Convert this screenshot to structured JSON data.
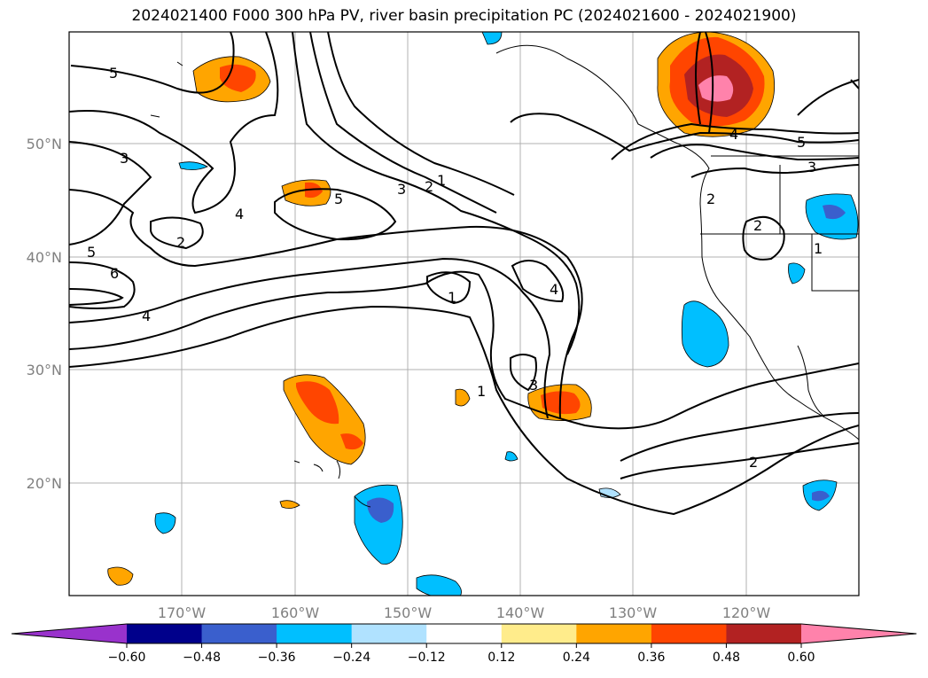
{
  "title": "2024021400 F000 300 hPa PV, river basin precipitation PC (2024021600 - 2024021900)",
  "map": {
    "lon_labels": [
      "170°W",
      "160°W",
      "150°W",
      "140°W",
      "130°W",
      "120°W"
    ],
    "lat_labels": [
      "50°N",
      "40°N",
      "30°N",
      "20°N"
    ],
    "pv_contour_labels": [
      "5",
      "3",
      "4",
      "2",
      "5",
      "6",
      "4",
      "5",
      "3",
      "2",
      "1",
      "1",
      "1",
      "4",
      "3",
      "4",
      "5",
      "3",
      "2",
      "2",
      "1",
      "2"
    ]
  },
  "colorbar": {
    "colors": [
      "#9932cc",
      "#00008b",
      "#3a5fcd",
      "#00bfff",
      "#b0e2ff",
      "#ffffff",
      "#ffec8b",
      "#ffa500",
      "#ff4500",
      "#b22222",
      "#ff82ab"
    ],
    "tick_labels": [
      "−0.60",
      "−0.48",
      "−0.36",
      "−0.24",
      "−0.12",
      "0.12",
      "0.24",
      "0.36",
      "0.48",
      "0.60"
    ]
  }
}
